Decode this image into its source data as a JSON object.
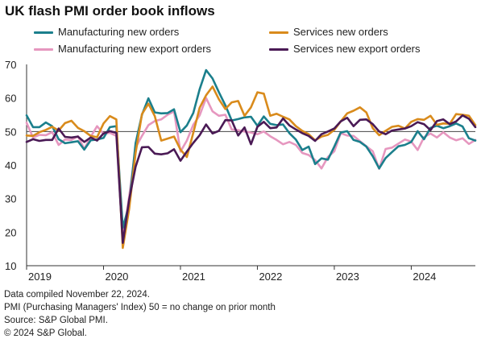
{
  "chart_data": {
    "type": "line",
    "title": "UK flash PMI order book inflows",
    "ylim": [
      10,
      70
    ],
    "yticks": [
      10,
      20,
      30,
      40,
      50,
      60,
      70
    ],
    "reference_line": 50,
    "xlim": [
      "2019-01",
      "2024-11"
    ],
    "xticks": [
      "2019",
      "2020",
      "2021",
      "2022",
      "2023",
      "2024"
    ],
    "legend_position": "top",
    "grid": false,
    "series": [
      {
        "name": "Manufacturing new orders",
        "color": "#1b7f8c",
        "start": "2019-01",
        "values": [
          54.8,
          51.3,
          51.3,
          52.7,
          51.6,
          47.7,
          46.5,
          46.8,
          47.1,
          44.6,
          47.4,
          47.6,
          48.1,
          51.3,
          51.6,
          21.3,
          28.2,
          46.5,
          55.0,
          59.9,
          55.7,
          55.4,
          55.5,
          56.6,
          49.8,
          51.8,
          55.5,
          62.6,
          68.3,
          65.8,
          61.7,
          57.8,
          53.3,
          53.7,
          54.2,
          54.4,
          51.7,
          54.5,
          52.3,
          51.9,
          52.1,
          49.5,
          47.6,
          44.5,
          45.5,
          40.3,
          42.0,
          41.6,
          45.5,
          49.7,
          50.1,
          47.5,
          46.9,
          45.5,
          42.6,
          39.0,
          42.1,
          43.9,
          45.6,
          46.0,
          46.9,
          50.1,
          47.7,
          51.1,
          51.7,
          51.0,
          51.6,
          52.4,
          51.5,
          48.0,
          47.3
        ]
      },
      {
        "name": "Services new orders",
        "color": "#d98b1c",
        "start": "2019-01",
        "values": [
          48.8,
          48.7,
          49.8,
          50.5,
          51.4,
          50.3,
          52.5,
          53.2,
          51.1,
          50.1,
          48.7,
          48.3,
          52.4,
          54.6,
          53.6,
          15.3,
          26.9,
          43.6,
          55.2,
          58.3,
          54.6,
          47.3,
          47.9,
          48.5,
          44.6,
          42.4,
          49.6,
          57.1,
          60.8,
          63.4,
          59.6,
          56.7,
          58.7,
          59.1,
          54.7,
          57.2,
          61.7,
          61.3,
          54.7,
          55.3,
          54.4,
          53.6,
          51.6,
          50.2,
          49.2,
          47.4,
          48.5,
          49.0,
          50.5,
          53.0,
          55.4,
          56.2,
          57.2,
          55.7,
          51.0,
          48.9,
          50.2,
          51.4,
          51.7,
          50.9,
          52.9,
          53.7,
          53.5,
          54.7,
          52.0,
          52.4,
          52.3,
          55.2,
          55.0,
          54.7,
          51.9
        ]
      },
      {
        "name": "Manufacturing new export orders",
        "color": "#e697bf",
        "start": "2019-01",
        "values": [
          52.6,
          48.2,
          49.0,
          48.9,
          49.8,
          46.0,
          47.6,
          47.5,
          48.6,
          44.8,
          48.4,
          51.6,
          49.3,
          49.6,
          48.7,
          18.0,
          30.6,
          45.2,
          48.7,
          51.9,
          53.1,
          53.6,
          55.0,
          56.0,
          44.0,
          47.3,
          52.0,
          54.8,
          60.0,
          56.0,
          54.7,
          55.0,
          50.6,
          50.4,
          50.0,
          49.7,
          49.2,
          50.0,
          48.6,
          47.5,
          46.2,
          46.9,
          46.0,
          43.6,
          43.0,
          41.5,
          39.0,
          42.4,
          44.1,
          49.5,
          48.8,
          48.7,
          47.1,
          45.6,
          44.1,
          38.9,
          44.8,
          45.2,
          46.4,
          47.6,
          47.0,
          44.5,
          48.3,
          49.4,
          48.2,
          49.8,
          48.2,
          47.4,
          48.0,
          46.3,
          47.5
        ]
      },
      {
        "name": "Services new export orders",
        "color": "#4a1a55",
        "start": "2019-01",
        "values": [
          46.9,
          47.7,
          47.2,
          47.5,
          47.5,
          50.9,
          48.4,
          48.2,
          48.5,
          46.9,
          48.2,
          47.3,
          49.4,
          50.1,
          49.6,
          16.8,
          29.7,
          39.5,
          45.3,
          45.4,
          43.4,
          43.2,
          43.5,
          44.7,
          41.3,
          44.0,
          46.6,
          48.9,
          52.1,
          49.4,
          50.2,
          53.4,
          53.3,
          48.8,
          51.2,
          46.2,
          51.4,
          52.9,
          51.0,
          51.2,
          53.9,
          51.8,
          50.6,
          49.5,
          48.7,
          47.2,
          49.2,
          50.0,
          50.9,
          53.0,
          54.1,
          51.6,
          53.5,
          53.6,
          52.2,
          50.0,
          49.2,
          50.3,
          50.6,
          50.9,
          51.6,
          52.8,
          52.2,
          50.4,
          53.1,
          53.6,
          52.2,
          53.0,
          54.8,
          53.8,
          51.3
        ]
      }
    ]
  },
  "footer": {
    "line1": "Data compiled November 22, 2024.",
    "line2": "PMI (Purchasing Managers' Index) 50 = no change on prior month",
    "line3": "Source: S&P Global PMI.",
    "line4": "© 2024 S&P Global."
  }
}
